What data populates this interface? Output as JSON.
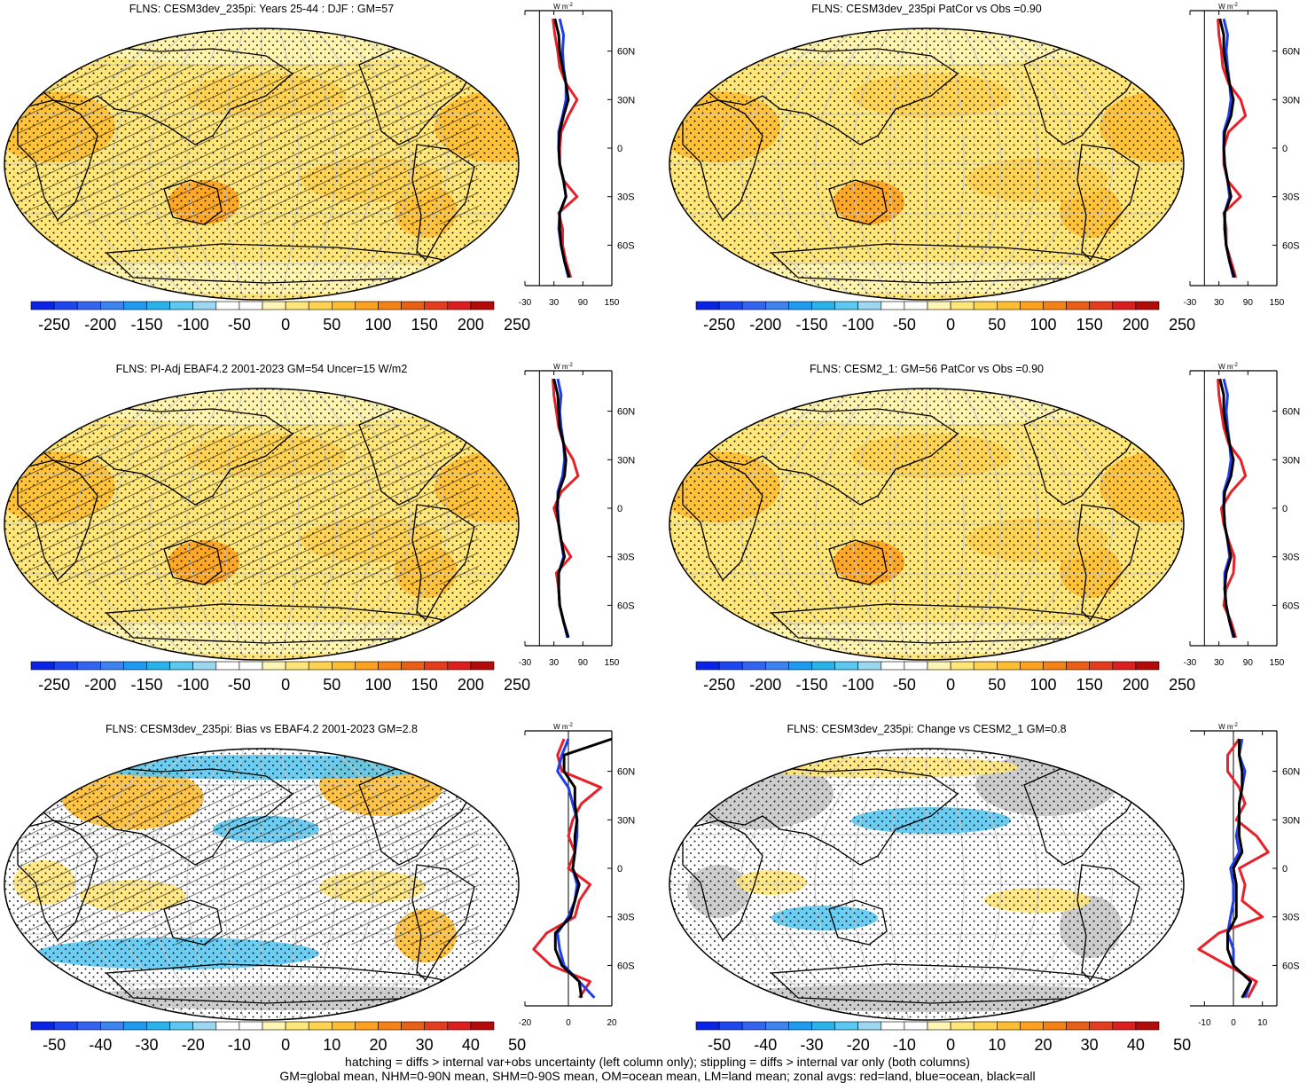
{
  "colors": {
    "land": "#e8202a",
    "ocean": "#1e3cf0",
    "all": "#000000",
    "missing": "#c8c8c8"
  },
  "palette_abs": [
    "#0a23e6",
    "#1e46f0",
    "#3264f0",
    "#3c82f0",
    "#1e9bf0",
    "#28b4eb",
    "#5ac8f0",
    "#9bd7f0",
    "#ffffff",
    "#ffffff",
    "#fff5b4",
    "#ffe678",
    "#ffd250",
    "#ffbe32",
    "#ffa01e",
    "#f58214",
    "#eb5f14",
    "#e63c1e",
    "#dc1e1e",
    "#b40a0a"
  ],
  "palette_diff": [
    "#0a23e6",
    "#1e46f0",
    "#3264f0",
    "#3c82f0",
    "#1e9bf0",
    "#28b4eb",
    "#5ac8f0",
    "#9bd7f0",
    "#ffffff",
    "#ffffff",
    "#fff5b4",
    "#ffe678",
    "#ffd250",
    "#ffbe32",
    "#ffa01e",
    "#f58214",
    "#eb5f14",
    "#e63c1e",
    "#dc1e1e",
    "#b40a0a"
  ],
  "units_label": "W m",
  "units_exp": "-2",
  "lat_labels": [
    "60N",
    "30N",
    "0",
    "30S",
    "60S"
  ],
  "panels": [
    {
      "title": "FLNS: CESM3dev_235pi: Years 25-44 : DJF : GM=57",
      "kind": "abs",
      "hatch": true,
      "colorbar_ticks": [
        "-250",
        "-200",
        "-150",
        "-100",
        "-50",
        "0",
        "50",
        "100",
        "150",
        "200",
        "250"
      ],
      "profile_ticks": [
        "-30",
        "30",
        "90",
        "150"
      ],
      "profile_range": [
        -30,
        150
      ]
    },
    {
      "title": "FLNS: CESM3dev_235pi PatCor vs Obs =0.90",
      "kind": "abs",
      "hatch": false,
      "colorbar_ticks": [
        "-250",
        "-200",
        "-150",
        "-100",
        "-50",
        "0",
        "50",
        "100",
        "150",
        "200",
        "250"
      ],
      "profile_ticks": [
        "-30",
        "30",
        "90",
        "150"
      ],
      "profile_range": [
        -30,
        150
      ]
    },
    {
      "title": "FLNS: PI-Adj EBAF4.2 2001-2023 GM=54 Uncer=15 W/m2",
      "kind": "abs",
      "hatch": true,
      "colorbar_ticks": [
        "-250",
        "-200",
        "-150",
        "-100",
        "-50",
        "0",
        "50",
        "100",
        "150",
        "200",
        "250"
      ],
      "profile_ticks": [
        "-30",
        "30",
        "90",
        "150"
      ],
      "profile_range": [
        -30,
        150
      ]
    },
    {
      "title": "FLNS: CESM2_1: GM=56 PatCor vs Obs =0.90",
      "kind": "abs",
      "hatch": false,
      "colorbar_ticks": [
        "-250",
        "-200",
        "-150",
        "-100",
        "-50",
        "0",
        "50",
        "100",
        "150",
        "200",
        "250"
      ],
      "profile_ticks": [
        "-30",
        "30",
        "90",
        "150"
      ],
      "profile_range": [
        -30,
        150
      ]
    },
    {
      "title": "FLNS: CESM3dev_235pi: Bias vs EBAF4.2 2001-2023 GM=2.8",
      "kind": "diff",
      "hatch": true,
      "colorbar_ticks": [
        "-50",
        "-40",
        "-30",
        "-20",
        "-10",
        "0",
        "10",
        "20",
        "30",
        "40",
        "50"
      ],
      "profile_ticks": [
        "-20",
        "0",
        "20"
      ],
      "profile_range": [
        -20,
        20
      ]
    },
    {
      "title": "FLNS: CESM3dev_235pi: Change vs CESM2_1 GM=0.8",
      "kind": "diff",
      "hatch": false,
      "colorbar_ticks": [
        "-50",
        "-40",
        "-30",
        "-20",
        "-10",
        "0",
        "10",
        "20",
        "30",
        "40",
        "50"
      ],
      "profile_ticks": [
        "-10",
        "0",
        "10"
      ],
      "profile_range": [
        -15,
        15
      ]
    }
  ],
  "footer": {
    "line1": "hatching = diffs > internal var+obs uncertainty (left column only); stippling = diffs > internal var only (both columns)",
    "line2": "GM=global mean, NHM=0-90N mean, SHM=0-90S mean, OM=ocean mean, LM=land mean; zonal avgs: red=land, blue=ocean, black=all"
  },
  "chart_data": [
    {
      "type": "line",
      "title": "FLNS: CESM3dev_235pi: Years 25-44 : DJF : GM=57",
      "xlim": [
        -30,
        150
      ],
      "y": [
        -80,
        -70,
        -60,
        -50,
        -40,
        -30,
        -20,
        -10,
        0,
        10,
        20,
        30,
        40,
        50,
        60,
        70,
        80
      ],
      "series": [
        {
          "name": "land",
          "values": [
            65,
            55,
            48,
            48,
            40,
            78,
            50,
            42,
            42,
            45,
            60,
            78,
            55,
            42,
            38,
            32,
            28
          ]
        },
        {
          "name": "ocean",
          "values": [
            60,
            52,
            45,
            40,
            42,
            55,
            50,
            42,
            40,
            40,
            48,
            55,
            55,
            50,
            48,
            50,
            42
          ]
        },
        {
          "name": "all",
          "values": [
            62,
            52,
            45,
            42,
            42,
            55,
            50,
            42,
            40,
            42,
            50,
            60,
            55,
            48,
            42,
            40,
            32
          ]
        }
      ]
    },
    {
      "type": "line",
      "title": "FLNS: CESM3dev_235pi PatCor vs Obs =0.90",
      "xlim": [
        -30,
        150
      ],
      "y": [
        -80,
        -70,
        -60,
        -50,
        -40,
        -30,
        -20,
        -10,
        0,
        10,
        20,
        30,
        40,
        50,
        60,
        70,
        80
      ],
      "series": [
        {
          "name": "land",
          "values": [
            65,
            55,
            45,
            45,
            40,
            75,
            48,
            40,
            40,
            50,
            85,
            75,
            50,
            38,
            35,
            30,
            28
          ]
        },
        {
          "name": "ocean",
          "values": [
            60,
            52,
            45,
            42,
            42,
            52,
            48,
            42,
            40,
            40,
            50,
            55,
            52,
            48,
            45,
            48,
            40
          ]
        },
        {
          "name": "all",
          "values": [
            62,
            52,
            45,
            42,
            42,
            55,
            48,
            42,
            40,
            42,
            55,
            60,
            52,
            45,
            40,
            40,
            32
          ]
        }
      ]
    },
    {
      "type": "line",
      "title": "FLNS: PI-Adj EBAF4.2 2001-2023 GM=54 Uncer=15 W/m2",
      "xlim": [
        -30,
        150
      ],
      "y": [
        -80,
        -70,
        -60,
        -50,
        -40,
        -30,
        -20,
        -10,
        0,
        10,
        20,
        30,
        40,
        50,
        60,
        70,
        80
      ],
      "series": [
        {
          "name": "land",
          "values": [
            60,
            50,
            42,
            40,
            35,
            65,
            45,
            40,
            30,
            45,
            80,
            70,
            50,
            40,
            35,
            30,
            28
          ]
        },
        {
          "name": "ocean",
          "values": [
            58,
            50,
            42,
            40,
            40,
            50,
            45,
            40,
            38,
            38,
            48,
            52,
            50,
            45,
            42,
            45,
            38
          ]
        },
        {
          "name": "all",
          "values": [
            60,
            50,
            42,
            40,
            40,
            52,
            45,
            40,
            36,
            40,
            52,
            55,
            50,
            42,
            40,
            38,
            30
          ]
        }
      ]
    },
    {
      "type": "line",
      "title": "FLNS: CESM2_1: GM=56 PatCor vs Obs =0.90",
      "xlim": [
        -30,
        150
      ],
      "y": [
        -80,
        -70,
        -60,
        -50,
        -40,
        -30,
        -20,
        -10,
        0,
        10,
        20,
        30,
        40,
        50,
        60,
        70,
        80
      ],
      "series": [
        {
          "name": "land",
          "values": [
            65,
            55,
            40,
            45,
            60,
            62,
            50,
            40,
            35,
            55,
            85,
            75,
            50,
            40,
            35,
            30,
            28
          ]
        },
        {
          "name": "ocean",
          "values": [
            60,
            52,
            45,
            42,
            42,
            52,
            48,
            42,
            40,
            40,
            50,
            55,
            52,
            48,
            45,
            48,
            40
          ]
        },
        {
          "name": "all",
          "values": [
            62,
            52,
            45,
            42,
            45,
            55,
            48,
            42,
            40,
            42,
            55,
            60,
            52,
            45,
            40,
            40,
            32
          ]
        }
      ]
    },
    {
      "type": "line",
      "title": "FLNS: CESM3dev_235pi: Bias vs EBAF4.2 2001-2023 GM=2.8",
      "xlim": [
        -20,
        20
      ],
      "y": [
        -80,
        -70,
        -60,
        -50,
        -40,
        -30,
        -20,
        -10,
        0,
        10,
        20,
        30,
        40,
        50,
        60,
        70,
        80
      ],
      "series": [
        {
          "name": "land",
          "values": [
            5,
            10,
            -8,
            -16,
            -10,
            3,
            5,
            10,
            0,
            3,
            0,
            2,
            6,
            15,
            -3,
            -5,
            -2
          ]
        },
        {
          "name": "ocean",
          "values": [
            12,
            5,
            -2,
            -4,
            -5,
            0,
            3,
            4,
            2,
            3,
            4,
            4,
            2,
            0,
            -5,
            -3,
            0
          ]
        },
        {
          "name": "all",
          "values": [
            6,
            5,
            -3,
            -6,
            -6,
            1,
            3,
            5,
            2,
            3,
            3,
            4,
            3,
            3,
            -2,
            -2,
            20
          ]
        }
      ]
    },
    {
      "type": "line",
      "title": "FLNS: CESM3dev_235pi: Change vs CESM2_1 GM=0.8",
      "xlim": [
        -15,
        15
      ],
      "y": [
        -80,
        -70,
        -60,
        -50,
        -40,
        -30,
        -20,
        -10,
        0,
        10,
        20,
        30,
        40,
        50,
        60,
        70,
        80
      ],
      "series": [
        {
          "name": "land",
          "values": [
            5,
            8,
            -2,
            -12,
            -5,
            10,
            3,
            4,
            2,
            12,
            8,
            1,
            4,
            2,
            -2,
            -2,
            2
          ]
        },
        {
          "name": "ocean",
          "values": [
            4,
            6,
            0,
            0,
            -2,
            -1,
            0,
            0,
            -1,
            2,
            1,
            2,
            2,
            3,
            4,
            2,
            3
          ]
        },
        {
          "name": "all",
          "values": [
            3,
            6,
            0,
            -2,
            -2,
            1,
            1,
            1,
            0,
            3,
            2,
            2,
            2,
            3,
            3,
            2,
            2
          ]
        }
      ]
    }
  ]
}
